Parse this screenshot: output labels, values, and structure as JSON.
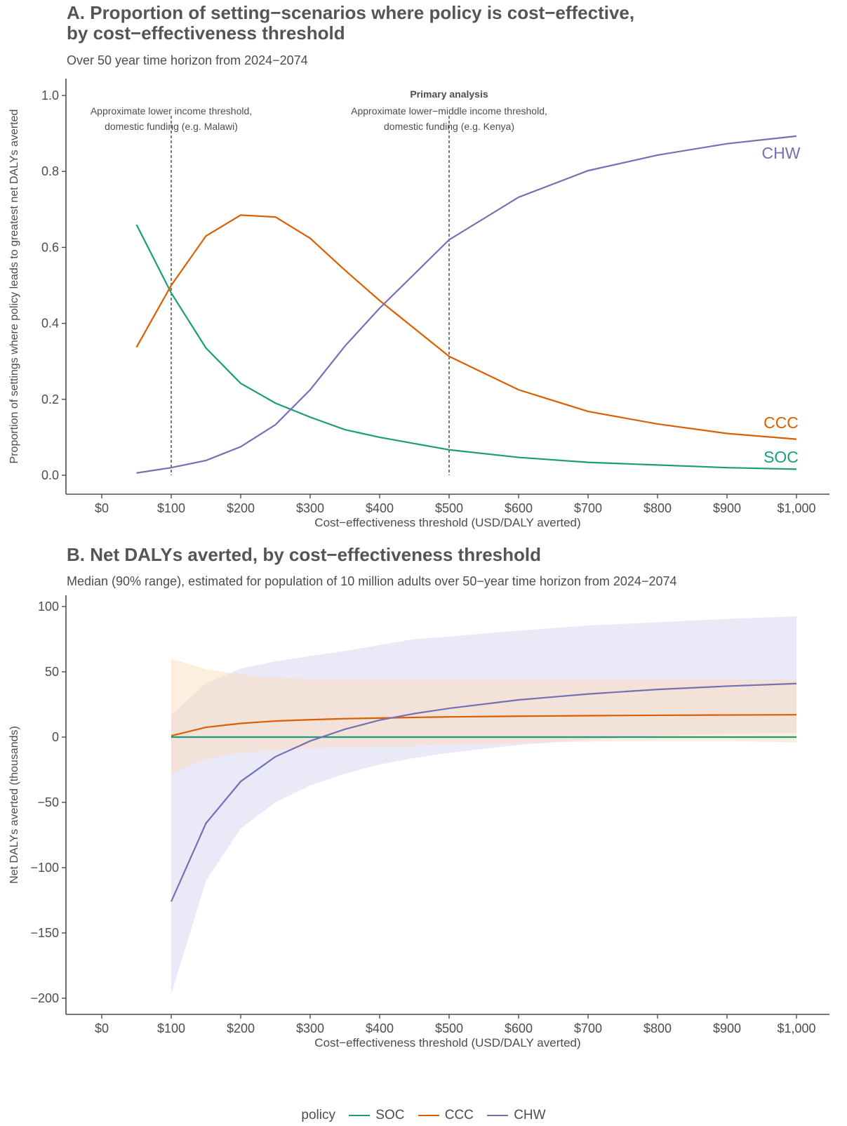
{
  "panel_a": {
    "title_line1": "A. Proportion of setting−scenarios where policy is cost−effective,",
    "title_line2": "by cost−effectiveness threshold",
    "subtitle": "Over 50 year time horizon from 2024−2074"
  },
  "panel_b": {
    "title": "B. Net DALYs averted, by cost−effectiveness threshold",
    "subtitle": "Median (90% range), estimated for population of 10 million adults over 50−year time horizon from 2024−2074"
  },
  "colors": {
    "SOC": "#1b9e77",
    "CCC": "#d95f02",
    "CHW": "#7570b3",
    "axis": "#4d4d4d"
  },
  "legend": {
    "title": "policy",
    "items": [
      {
        "label": "SOC",
        "color": "#1b9e77"
      },
      {
        "label": "CCC",
        "color": "#d95f02"
      },
      {
        "label": "CHW",
        "color": "#7570b3"
      }
    ]
  },
  "chart_data": [
    {
      "type": "line",
      "xlabel": "Cost−effectiveness threshold (USD/DALY averted)",
      "ylabel": "Proportion of settings where policy leads to greatest net DALYs averted",
      "xlim": [
        0,
        1000
      ],
      "ylim": [
        0,
        1.0
      ],
      "x_ticks": [
        0,
        100,
        200,
        300,
        400,
        500,
        600,
        700,
        800,
        900,
        1000
      ],
      "x_tick_labels": [
        "$0",
        "$100",
        "$200",
        "$300",
        "$400",
        "$500",
        "$600",
        "$700",
        "$800",
        "$900",
        "$1,000"
      ],
      "y_ticks": [
        0,
        0.2,
        0.4,
        0.6,
        0.8,
        1.0
      ],
      "y_tick_labels": [
        "0.0",
        "0.2",
        "0.4",
        "0.6",
        "0.8",
        "1.0"
      ],
      "grid": false,
      "x": [
        50,
        100,
        150,
        200,
        250,
        300,
        350,
        400,
        500,
        600,
        700,
        800,
        900,
        1000
      ],
      "series": [
        {
          "name": "SOC",
          "values": [
            0.66,
            0.48,
            0.335,
            0.242,
            0.19,
            0.153,
            0.12,
            0.1,
            0.067,
            0.047,
            0.034,
            0.027,
            0.02,
            0.016
          ]
        },
        {
          "name": "CCC",
          "values": [
            0.337,
            0.5,
            0.63,
            0.685,
            0.68,
            0.624,
            0.54,
            0.46,
            0.313,
            0.225,
            0.168,
            0.135,
            0.11,
            0.095
          ]
        },
        {
          "name": "CHW",
          "values": [
            0.006,
            0.02,
            0.039,
            0.075,
            0.133,
            0.225,
            0.34,
            0.44,
            0.62,
            0.732,
            0.802,
            0.843,
            0.873,
            0.893
          ]
        }
      ],
      "series_labels": [
        "SOC",
        "CCC",
        "CHW"
      ],
      "vlines": [
        {
          "x": 100,
          "lines": [
            "Approximate lower income threshold,",
            "domestic funding (e.g. Malawi)"
          ]
        },
        {
          "x": 500,
          "heading": "Primary analysis",
          "lines": [
            "Approximate lower−middle income threshold,",
            "domestic funding (e.g. Kenya)"
          ]
        }
      ]
    },
    {
      "type": "area",
      "xlabel": "Cost−effectiveness threshold (USD/DALY averted)",
      "ylabel": "Net DALYs averted (thousands)",
      "xlim": [
        0,
        1000
      ],
      "ylim": [
        -200,
        100
      ],
      "x_ticks": [
        0,
        100,
        200,
        300,
        400,
        500,
        600,
        700,
        800,
        900,
        1000
      ],
      "x_tick_labels": [
        "$0",
        "$100",
        "$200",
        "$300",
        "$400",
        "$500",
        "$600",
        "$700",
        "$800",
        "$900",
        "$1,000"
      ],
      "y_ticks": [
        -200,
        -150,
        -100,
        -50,
        0,
        50,
        100
      ],
      "y_tick_labels": [
        "−200",
        "−150",
        "−100",
        "−50",
        "0",
        "50",
        "100"
      ],
      "grid": false,
      "x": [
        100,
        150,
        200,
        250,
        300,
        350,
        400,
        450,
        500,
        600,
        700,
        800,
        900,
        1000
      ],
      "series": [
        {
          "name": "SOC",
          "values": [
            0,
            0,
            0,
            0,
            0,
            0,
            0,
            0,
            0,
            0,
            0,
            0,
            0,
            0
          ],
          "lower": [
            0,
            0,
            0,
            0,
            0,
            0,
            0,
            0,
            0,
            0,
            0,
            0,
            0,
            0
          ],
          "upper": [
            0,
            0,
            0,
            0,
            0,
            0,
            0,
            0,
            0,
            0,
            0,
            0,
            0,
            0
          ]
        },
        {
          "name": "CCC",
          "values": [
            1,
            7.5,
            10.5,
            12.3,
            13.3,
            14.1,
            14.6,
            15.1,
            15.5,
            16,
            16.4,
            16.7,
            16.9,
            17.1
          ],
          "lower": [
            -28,
            -17,
            -12,
            -10,
            -8.5,
            -7.8,
            -7.2,
            -6.8,
            -6,
            -4.5,
            -3.5,
            -3,
            -3,
            -4
          ],
          "upper": [
            60,
            52,
            48,
            45.5,
            44.5,
            44,
            44,
            44,
            44,
            44,
            44,
            44,
            44,
            44
          ]
        },
        {
          "name": "CHW",
          "values": [
            -126,
            -66,
            -34,
            -15,
            -3,
            6,
            13,
            18,
            22,
            28.5,
            33,
            36.5,
            39,
            41
          ],
          "lower": [
            -197,
            -110,
            -70,
            -50,
            -37,
            -28,
            -21,
            -16,
            -12,
            -6,
            -2,
            1,
            2.5,
            3.5
          ],
          "upper": [
            17,
            41,
            52.5,
            58,
            62,
            66,
            70.5,
            75,
            77,
            81.5,
            85.5,
            88,
            90.5,
            92.5
          ]
        }
      ]
    }
  ]
}
